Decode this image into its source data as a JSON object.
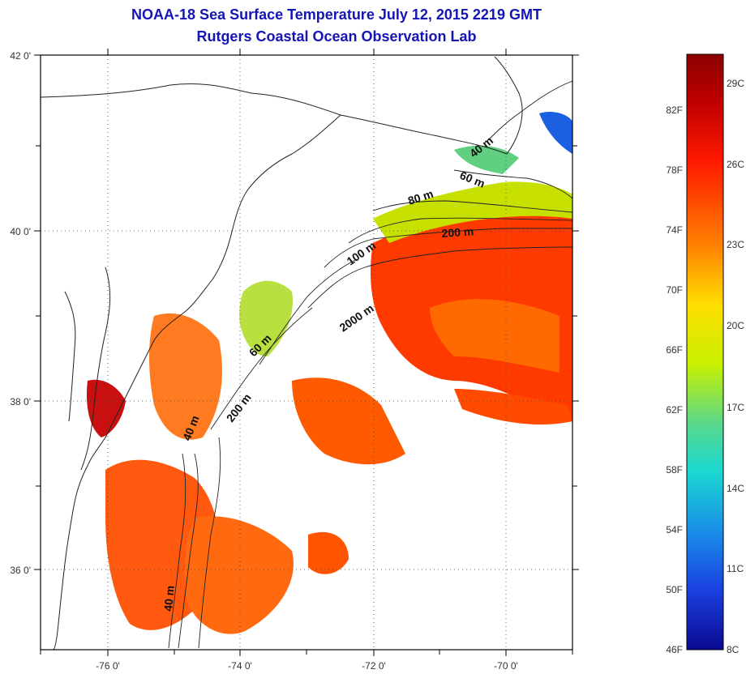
{
  "title": {
    "line1": "NOAA-18 Sea Surface Temperature July 12, 2015 2219 GMT",
    "line2": "Rutgers Coastal Ocean Observation Lab"
  },
  "map": {
    "lon_ticks": [
      "-76 0'",
      "-74 0'",
      "-72 0'",
      "-70 0'"
    ],
    "lat_ticks": [
      "42 0'",
      "40 0'",
      "38 0'",
      "36 0'"
    ],
    "contour_labels": [
      {
        "text": "40 m",
        "depth": 40
      },
      {
        "text": "60 m",
        "depth": 60
      },
      {
        "text": "80 m",
        "depth": 80
      },
      {
        "text": "200 m",
        "depth": 200
      },
      {
        "text": "100 m",
        "depth": 100
      },
      {
        "text": "2000 m",
        "depth": 2000
      },
      {
        "text": "60 m",
        "depth": 60
      },
      {
        "text": "200 m",
        "depth": 200
      },
      {
        "text": "40 m",
        "depth": 40
      },
      {
        "text": "40 m",
        "depth": 40
      }
    ],
    "grid": "dotted"
  },
  "colorbar": {
    "fahrenheit_labels": [
      "82F",
      "78F",
      "74F",
      "70F",
      "66F",
      "62F",
      "58F",
      "54F",
      "50F",
      "46F"
    ],
    "celsius_labels": [
      "29C",
      "26C",
      "23C",
      "20C",
      "17C",
      "14C",
      "11C",
      "8C"
    ],
    "colors": [
      "#8b0000",
      "#d40000",
      "#ff2a00",
      "#ff7a00",
      "#ffcc00",
      "#d6f200",
      "#7ee06a",
      "#1ed8c8",
      "#1aa0e8",
      "#1a4fe0",
      "#0a0aa0"
    ]
  }
}
